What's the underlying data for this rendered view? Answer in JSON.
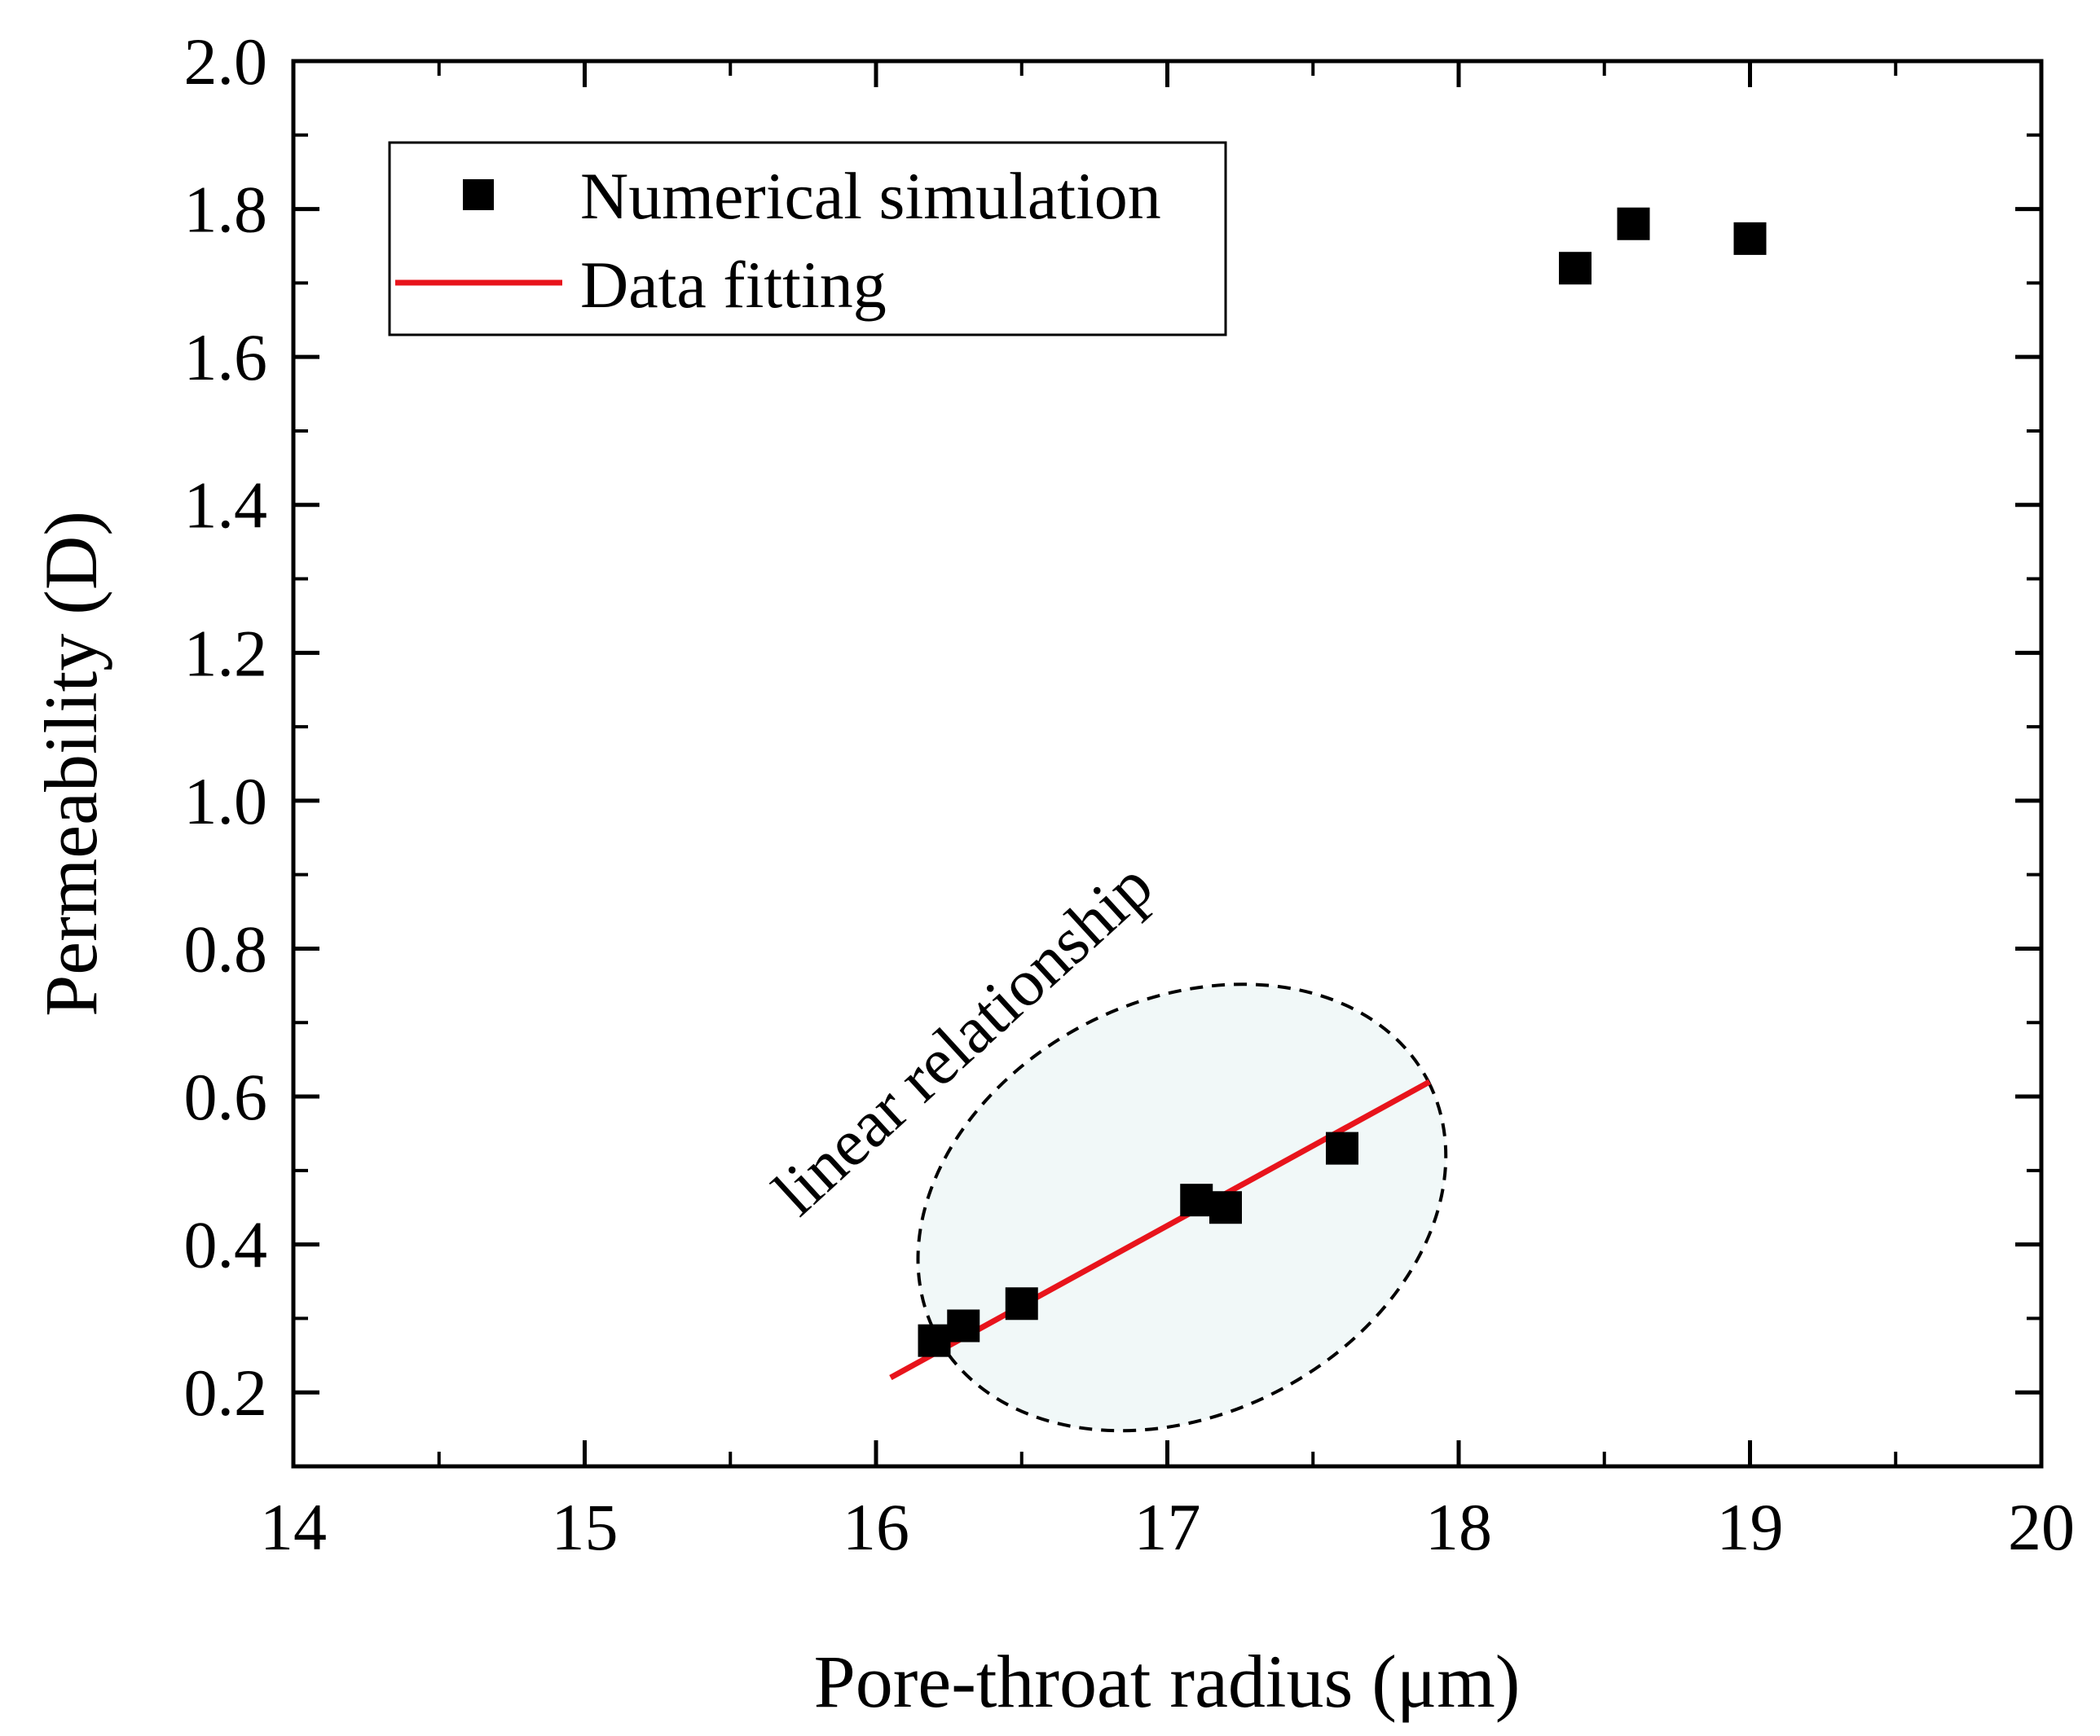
{
  "chart_data": {
    "type": "scatter",
    "title": "",
    "xlabel": "Pore-throat radius (μm)",
    "ylabel": "Permeability (D)",
    "xlim": [
      14,
      20
    ],
    "ylim": [
      0.1,
      2.0
    ],
    "xticks": [
      14,
      15,
      16,
      17,
      18,
      19,
      20
    ],
    "yticks": [
      0.2,
      0.4,
      0.6,
      0.8,
      1.0,
      1.2,
      1.4,
      1.6,
      1.8,
      2.0
    ],
    "ytick_labels": [
      "0.2",
      "0.4",
      "0.6",
      "0.8",
      "1.0",
      "1.2",
      "1.4",
      "1.6",
      "1.8",
      "2.0"
    ],
    "grid": false,
    "legend_position": "top-left",
    "series": [
      {
        "name": "Numerical simulation",
        "kind": "scatter",
        "marker": "square",
        "color": "#000000",
        "x": [
          16.2,
          16.3,
          16.5,
          17.1,
          17.2,
          17.6,
          18.4,
          18.6,
          19.0
        ],
        "y": [
          0.27,
          0.29,
          0.32,
          0.46,
          0.45,
          0.53,
          1.72,
          1.78,
          1.76
        ]
      },
      {
        "name": "Data fitting",
        "kind": "line",
        "color": "#e8141c",
        "x": [
          16.05,
          17.9
        ],
        "y": [
          0.22,
          0.62
        ]
      }
    ],
    "annotations": [
      {
        "text": "linear relationship",
        "type": "ellipse-highlight",
        "fill": "#f1f8f8",
        "stroke": "#000000",
        "center": [
          17.05,
          0.45
        ],
        "semi_axis_x": 0.95,
        "semi_axis_y": 0.28,
        "rotation_deg": -27
      }
    ]
  }
}
